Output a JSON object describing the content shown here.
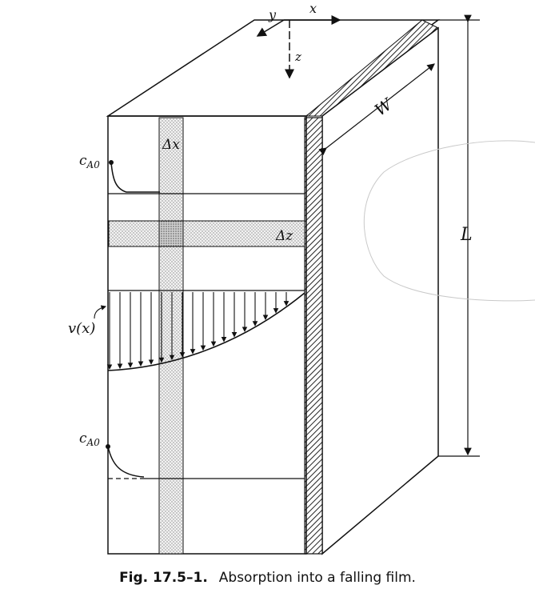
{
  "labels": {
    "axis_x": "x",
    "axis_y": "y",
    "axis_z": "z",
    "width": "W",
    "length": "L",
    "delta_x": "Δx",
    "delta_z": "Δz",
    "conc_top": "c",
    "conc_top_sub": "A0",
    "conc_bottom": "c",
    "conc_bottom_sub": "A0",
    "velocity": "v(x)"
  },
  "caption": {
    "number": "Fig. 17.5–1.",
    "text": "Absorption into a falling film."
  }
}
